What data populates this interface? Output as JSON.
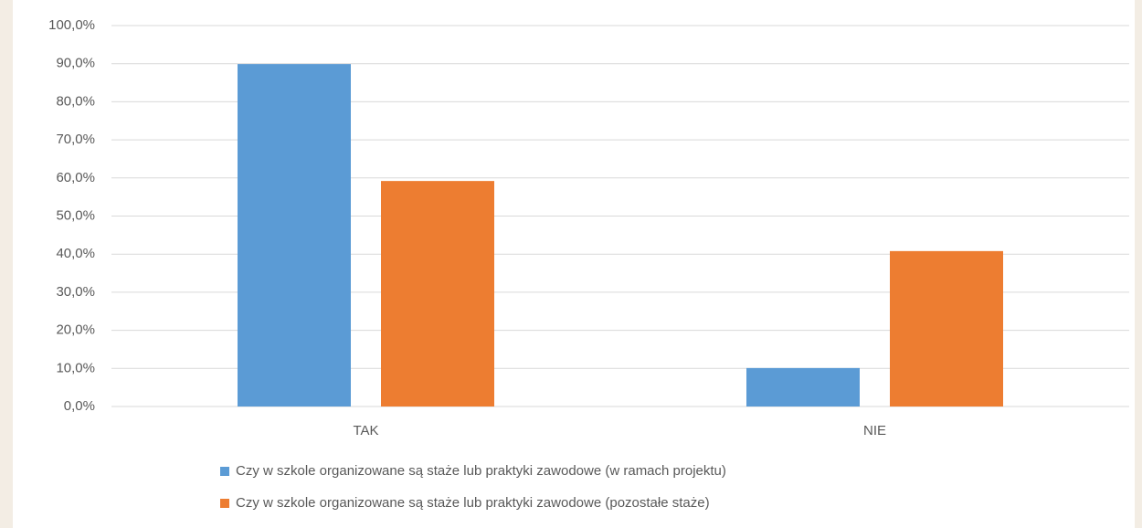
{
  "chart_data": {
    "type": "bar",
    "categories": [
      "TAK",
      "NIE"
    ],
    "series": [
      {
        "name": "Czy w szkole organizowane są staże lub praktyki zawodowe (w ramach projektu)",
        "color": "#5b9bd5",
        "values": [
          89.9,
          10.1
        ]
      },
      {
        "name": "Czy w szkole organizowane są staże lub praktyki zawodowe  (pozostałe staże)",
        "color": "#ed7d31",
        "values": [
          59.2,
          40.8
        ]
      }
    ],
    "ylim": [
      0,
      100
    ],
    "yticks": [
      {
        "value": 0,
        "label": "0,0%"
      },
      {
        "value": 10,
        "label": "10,0%"
      },
      {
        "value": 20,
        "label": "20,0%"
      },
      {
        "value": 30,
        "label": "30,0%"
      },
      {
        "value": 40,
        "label": "40,0%"
      },
      {
        "value": 50,
        "label": "50,0%"
      },
      {
        "value": 60,
        "label": "60,0%"
      },
      {
        "value": 70,
        "label": "70,0%"
      },
      {
        "value": 80,
        "label": "80,0%"
      },
      {
        "value": 90,
        "label": "90,0%"
      },
      {
        "value": 100,
        "label": "100,0%"
      }
    ],
    "grid": true,
    "legend": "bottom"
  }
}
